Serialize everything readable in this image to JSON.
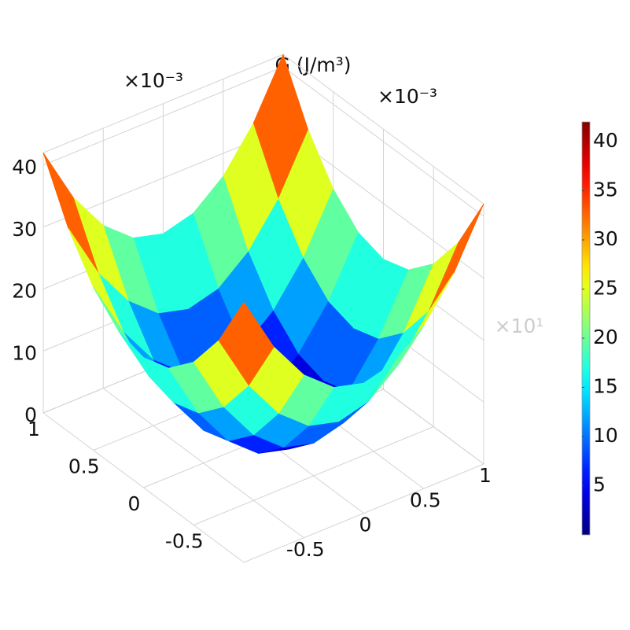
{
  "chart_data": {
    "type": "surface",
    "title": "G (J/m³)",
    "annotations": [
      "×10⁻³",
      "×10⁻³",
      "×10¹"
    ],
    "colormap": "jet",
    "grid": true,
    "x": [
      -1,
      -0.75,
      -0.5,
      -0.25,
      0,
      0.25,
      0.5,
      0.75,
      1
    ],
    "y": [
      -1,
      -0.75,
      -0.5,
      -0.25,
      0,
      0.25,
      0.5,
      0.75,
      1
    ],
    "z": [
      [
        42,
        32.8,
        26.3,
        22.3,
        21,
        22.3,
        26.3,
        32.8,
        42
      ],
      [
        32.8,
        23.6,
        17.1,
        13.1,
        11.8,
        13.1,
        17.1,
        23.6,
        32.8
      ],
      [
        26.3,
        17.1,
        10.6,
        6.6,
        5.3,
        6.6,
        10.6,
        17.1,
        26.3
      ],
      [
        22.3,
        13.1,
        6.6,
        2.6,
        1.3,
        2.6,
        6.6,
        13.1,
        22.3
      ],
      [
        21,
        11.8,
        5.3,
        1.3,
        0,
        1.3,
        5.3,
        11.8,
        21
      ],
      [
        22.3,
        13.1,
        6.6,
        2.6,
        1.3,
        2.6,
        6.6,
        13.1,
        22.3
      ],
      [
        26.3,
        17.1,
        10.6,
        6.6,
        5.3,
        6.6,
        10.6,
        17.1,
        26.3
      ],
      [
        32.8,
        23.6,
        17.1,
        13.1,
        11.8,
        13.1,
        17.1,
        23.6,
        32.8
      ],
      [
        42,
        32.8,
        26.3,
        22.3,
        21,
        22.3,
        26.3,
        32.8,
        42
      ]
    ],
    "xlim": [
      -1,
      1
    ],
    "xticks": [
      -0.5,
      0,
      0.5,
      1
    ],
    "ylim": [
      -1,
      1
    ],
    "yticks": [
      -0.5,
      0,
      0.5,
      1
    ],
    "zlim": [
      0,
      42
    ],
    "zticks": [
      0,
      10,
      20,
      30,
      40
    ],
    "clim": [
      0,
      42
    ],
    "cticks": [
      5,
      10,
      15,
      20,
      25,
      30,
      35,
      40
    ]
  }
}
